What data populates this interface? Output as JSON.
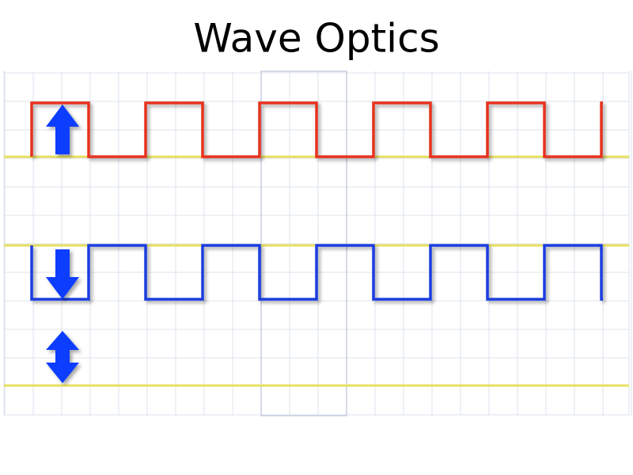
{
  "title": "Wave Optics"
}
